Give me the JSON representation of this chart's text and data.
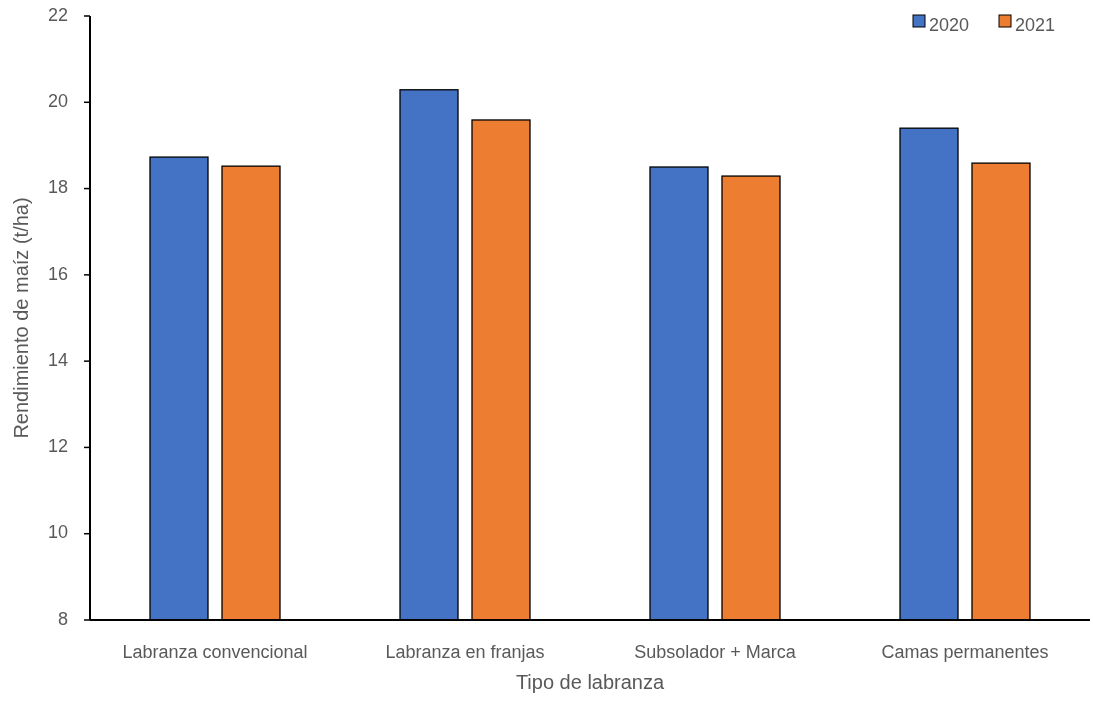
{
  "chart_data": {
    "type": "bar",
    "xlabel": "Tipo de labranza",
    "ylabel": "Rendimiento de maíz (t/ha)",
    "categories": [
      "Labranza convencional",
      "Labranza en franjas",
      "Subsolador + Marca",
      "Camas permanentes"
    ],
    "series": [
      {
        "name": "2020",
        "color": "#4472c4",
        "values": [
          18.73,
          20.29,
          18.5,
          19.4
        ]
      },
      {
        "name": "2021",
        "color": "#ed7d31",
        "values": [
          18.52,
          19.59,
          18.29,
          18.59
        ]
      }
    ],
    "ylim": [
      8,
      22
    ],
    "yticks": [
      8,
      10,
      12,
      14,
      16,
      18,
      20,
      22
    ],
    "grid": false,
    "legend": "top right"
  }
}
